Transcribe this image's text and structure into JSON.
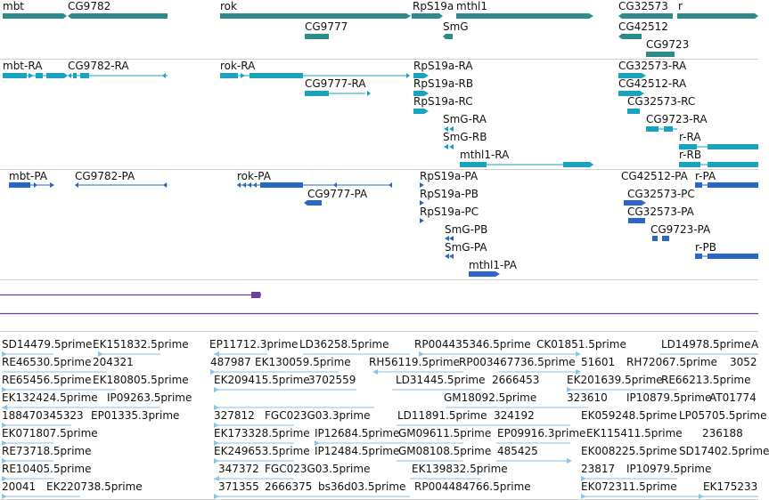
{
  "colors": {
    "gene": "#2e8b8b",
    "transcript": "#1aa3c0",
    "protein": "#2a66c8",
    "est": "#8cc2e6",
    "ruler": "#6a3fa0",
    "separator": "#cfcfcf"
  },
  "tracks": {
    "genes": [
      "mbt",
      "CG9782",
      "rok",
      "CG9777",
      "RpS19a",
      "SmG",
      "mthl1",
      "CG32573",
      "CG42512",
      "r",
      "CG9723"
    ],
    "transcripts": [
      "mbt-RA",
      "CG9782-RA",
      "rok-RA",
      "CG9777-RA",
      "RpS19a-RA",
      "RpS19a-RB",
      "RpS19a-RC",
      "SmG-RA",
      "SmG-RB",
      "mthl1-RA",
      "CG32573-RA",
      "CG42512-RA",
      "CG32573-RC",
      "CG9723-RA",
      "r-RA",
      "r-RB"
    ],
    "proteins": [
      "mbt-PA",
      "CG9782-PA",
      "rok-PA",
      "CG9777-PA",
      "RpS19a-PA",
      "RpS19a-PB",
      "RpS19a-PC",
      "SmG-PB",
      "SmG-PA",
      "mthl1-PA",
      "CG42512-PA",
      "r-PA",
      "CG32573-PC",
      "CG32573-PA",
      "CG9723-PA",
      "r-PB"
    ],
    "ests": [
      "SD14479.5prime",
      "EK151832.5prime",
      "EP11712.3prime",
      "LD36258.5prime",
      "RP004435346.5prime",
      "CK01851.5prime",
      "LD14978.5prime",
      "A",
      "RE46530.5prime",
      "204321",
      "487987",
      "EK130059.5prime",
      "RH56119.5prime",
      "RP003467736.5prime",
      "51601",
      "RH72067.5prime",
      "3052",
      "RE65456.5prime",
      "EK180805.5prime",
      "EK209415.5prime",
      "3702559",
      "LD31445.5prime",
      "2666453",
      "EK201639.5prime",
      "RE66213.5prime",
      "EK132424.5prime",
      "IP09263.5prime",
      "GM18092.5prime",
      "323610",
      "IP10879.5prime",
      "AT01774",
      "188470345323",
      "EP01335.3prime",
      "327812",
      "FGC023G03.3prime",
      "LD11891.5prime",
      "324192",
      "EK059248.5prime",
      "LP05705.5prime",
      "EK071807.5prime",
      "EK173328.5prime",
      "IP12684.5prime",
      "GM09611.5prime",
      "EP09916.3prime",
      "EK115411.5prime",
      "236188",
      "RE73718.5prime",
      "EK249653.5prime",
      "IP12484.5prime",
      "GM08108.5prime",
      "485425",
      "EK008225.5prime",
      "SD17402.5prime",
      "RE10405.5prime",
      "347372",
      "FGC023G03.5prime",
      "EK139832.5prime",
      "23817",
      "IP10979.5prime",
      "20041",
      "EK220738.5prime",
      "371355",
      "2666375",
      "bs36d03.5prime",
      "RP004484766.5prime",
      "EK072311.5prime",
      "EK175233"
    ]
  }
}
